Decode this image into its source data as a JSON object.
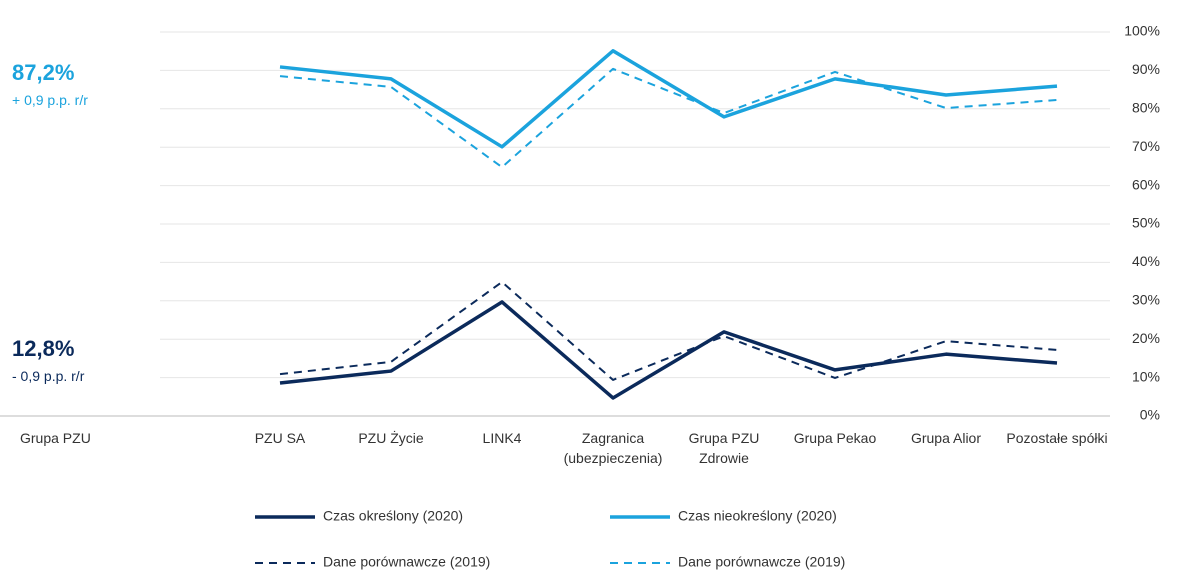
{
  "chart_data": {
    "type": "line",
    "categories": [
      "PZU SA",
      "PZU Życie",
      "LINK4",
      "Zagranica\n(ubezpieczenia)",
      "Grupa PZU\nZdrowie",
      "Grupa Pekao",
      "Grupa Alior",
      "Pozostałe spółki"
    ],
    "series": [
      {
        "name": "Czas określony (2020)",
        "color": "#0b2a5b",
        "line_style": "solid",
        "values": [
          8.6,
          11.7,
          29.7,
          4.7,
          21.9,
          12.0,
          16.1,
          13.8
        ]
      },
      {
        "name": "Czas nieokreślony (2020)",
        "color": "#1ba3dd",
        "line_style": "solid",
        "values": [
          90.9,
          87.8,
          70.1,
          95.1,
          77.9,
          87.8,
          83.6,
          85.9
        ]
      },
      {
        "name": "Dane porównawcze (2019)",
        "color": "#0b2a5b",
        "line_style": "dashed",
        "values": [
          10.9,
          14.1,
          34.9,
          9.4,
          20.8,
          9.9,
          19.5,
          17.2
        ]
      },
      {
        "name": "Dane porównawcze (2019)",
        "color": "#1ba3dd",
        "line_style": "dashed",
        "values": [
          88.5,
          85.7,
          64.8,
          90.4,
          78.9,
          89.6,
          80.2,
          82.3
        ]
      }
    ],
    "ylim": [
      0,
      100
    ],
    "yticks": [
      {
        "value": 0,
        "label": "0%"
      },
      {
        "value": 10,
        "label": "10%"
      },
      {
        "value": 20,
        "label": "20%"
      },
      {
        "value": 30,
        "label": "30%"
      },
      {
        "value": 40,
        "label": "40%"
      },
      {
        "value": 50,
        "label": "50%"
      },
      {
        "value": 60,
        "label": "60%"
      },
      {
        "value": 70,
        "label": "70%"
      },
      {
        "value": 80,
        "label": "80%"
      },
      {
        "value": 90,
        "label": "90%"
      },
      {
        "value": 100,
        "label": "100%"
      }
    ],
    "y_axis_side": "right",
    "grid": true,
    "summary": {
      "category": "Grupa PZU",
      "items": [
        {
          "value": 87.2,
          "label": "87,2%",
          "change": "+ 0,9 p.p. r/r",
          "color": "#1ba3dd"
        },
        {
          "value": 12.8,
          "label": "12,8%",
          "change": "- 0,9 p.p. r/r",
          "color": "#0b2a5b"
        }
      ]
    }
  }
}
